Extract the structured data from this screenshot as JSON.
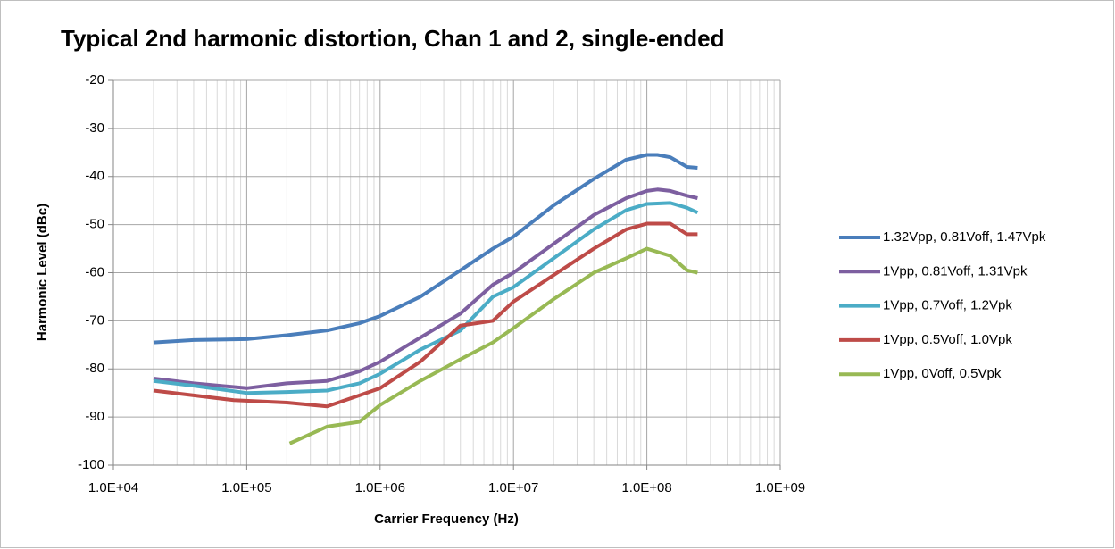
{
  "chart_data": {
    "type": "line",
    "title": "Typical 2nd harmonic distortion, Chan 1 and 2, single-ended",
    "xlabel": "Carrier Frequency (Hz)",
    "ylabel": "Harmonic Level (dBc)",
    "xscale": "log",
    "xlim": [
      10000,
      1000000000
    ],
    "ylim": [
      -100,
      -20
    ],
    "xticks": [
      {
        "value": 10000,
        "label": "1.0E+04"
      },
      {
        "value": 100000,
        "label": "1.0E+05"
      },
      {
        "value": 1000000,
        "label": "1.0E+06"
      },
      {
        "value": 10000000,
        "label": "1.0E+07"
      },
      {
        "value": 100000000,
        "label": "1.0E+08"
      },
      {
        "value": 1000000000,
        "label": "1.0E+09"
      }
    ],
    "yticks": [
      -20,
      -30,
      -40,
      -50,
      -60,
      -70,
      -80,
      -90,
      -100
    ],
    "grid": true,
    "minor_grid": true,
    "legend": "right",
    "series": [
      {
        "name": "1.32Vpp, 0.81Voff, 1.47Vpk",
        "color": "#4a7ebb",
        "x": [
          20000,
          40000,
          100000,
          200000,
          400000,
          700000,
          1000000,
          2000000,
          4000000,
          7000000,
          10000000,
          20000000,
          40000000,
          70000000,
          100000000,
          120000000,
          150000000,
          200000000,
          240000000
        ],
        "values": [
          -74.5,
          -74,
          -73.8,
          -73,
          -72,
          -70.5,
          -69,
          -65,
          -59.5,
          -55,
          -52.5,
          -46,
          -40.5,
          -36.5,
          -35.5,
          -35.5,
          -36,
          -38,
          -38.2
        ]
      },
      {
        "name": "1Vpp, 0.81Voff, 1.31Vpk",
        "color": "#7d5fa0",
        "x": [
          20000,
          40000,
          100000,
          200000,
          400000,
          700000,
          1000000,
          2000000,
          4000000,
          7000000,
          10000000,
          20000000,
          40000000,
          70000000,
          100000000,
          120000000,
          150000000,
          200000000,
          240000000
        ],
        "values": [
          -82,
          -83,
          -84,
          -83,
          -82.5,
          -80.5,
          -78.5,
          -73.5,
          -68.5,
          -62.5,
          -60,
          -54,
          -48,
          -44.5,
          -43,
          -42.7,
          -43,
          -44,
          -44.5
        ]
      },
      {
        "name": "1Vpp, 0.7Voff, 1.2Vpk",
        "color": "#4bacc6",
        "x": [
          20000,
          40000,
          100000,
          200000,
          400000,
          700000,
          1000000,
          2000000,
          4000000,
          7000000,
          10000000,
          20000000,
          40000000,
          70000000,
          100000000,
          150000000,
          200000000,
          240000000
        ],
        "values": [
          -82.5,
          -83.5,
          -85,
          -84.8,
          -84.5,
          -83,
          -81,
          -76,
          -72,
          -65,
          -63,
          -57,
          -51,
          -47,
          -45.7,
          -45.5,
          -46.5,
          -47.5
        ]
      },
      {
        "name": "1Vpp, 0.5Voff, 1.0Vpk",
        "color": "#be4b48",
        "x": [
          20000,
          40000,
          80000,
          200000,
          400000,
          700000,
          1000000,
          2000000,
          4000000,
          7000000,
          10000000,
          20000000,
          40000000,
          70000000,
          100000000,
          150000000,
          200000000,
          240000000
        ],
        "values": [
          -84.5,
          -85.5,
          -86.5,
          -87,
          -87.8,
          -85.5,
          -84,
          -78.5,
          -71,
          -70,
          -66,
          -60.5,
          -55,
          -51,
          -49.8,
          -49.8,
          -52,
          -52
        ]
      },
      {
        "name": "1Vpp, 0Voff, 0.5Vpk",
        "color": "#98b954",
        "x": [
          210000,
          400000,
          700000,
          1000000,
          2000000,
          4000000,
          7000000,
          10000000,
          20000000,
          40000000,
          70000000,
          100000000,
          150000000,
          200000000,
          240000000
        ],
        "values": [
          -95.5,
          -92,
          -91,
          -87.5,
          -82.5,
          -78,
          -74.5,
          -71.5,
          -65.5,
          -60,
          -57,
          -55,
          -56.5,
          -59.5,
          -60
        ]
      }
    ]
  }
}
